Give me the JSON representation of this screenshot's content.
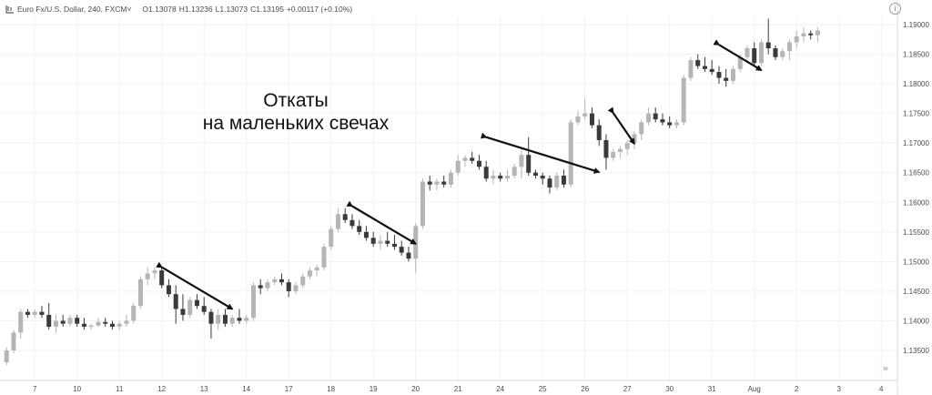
{
  "header": {
    "symbol": "Euro Fx/U.S. Dollar, 240, FXCM",
    "dropdown_glyph": "˅",
    "open": "O1.13078",
    "high": "H1.13236",
    "low": "L1.13073",
    "close": "C1.13195",
    "change": "+0.00117 (+0.10%)",
    "info_glyph": "i"
  },
  "annotation": {
    "line1": "Откаты",
    "line2": "на маленьких свечах"
  },
  "scroll_glyph": "»",
  "colors": {
    "bull_candle": "#b5b5b5",
    "bear_candle": "#3a3a3a",
    "grid": "#f0f2f5",
    "arrow": "#111111",
    "axis_text": "#4a4a4a"
  },
  "chart_data": {
    "type": "candlestick",
    "timeframe": "240",
    "y_ticks": [
      "1.13500",
      "1.14000",
      "1.14500",
      "1.15000",
      "1.15500",
      "1.16000",
      "1.16500",
      "1.17000",
      "1.17500",
      "1.18000",
      "1.18500",
      "1.19000"
    ],
    "ylim": [
      1.1325,
      1.192
    ],
    "x_ticks": [
      {
        "label": "7",
        "index": 4
      },
      {
        "label": "10",
        "index": 10
      },
      {
        "label": "11",
        "index": 16
      },
      {
        "label": "12",
        "index": 22
      },
      {
        "label": "13",
        "index": 28
      },
      {
        "label": "14",
        "index": 34
      },
      {
        "label": "17",
        "index": 40
      },
      {
        "label": "18",
        "index": 46
      },
      {
        "label": "19",
        "index": 52
      },
      {
        "label": "20",
        "index": 58
      },
      {
        "label": "21",
        "index": 64
      },
      {
        "label": "24",
        "index": 70
      },
      {
        "label": "25",
        "index": 76
      },
      {
        "label": "26",
        "index": 82
      },
      {
        "label": "27",
        "index": 88
      },
      {
        "label": "30",
        "index": 94
      },
      {
        "label": "31",
        "index": 100
      },
      {
        "label": "Aug",
        "index": 106
      },
      {
        "label": "2",
        "index": 112
      },
      {
        "label": "3",
        "index": 118
      },
      {
        "label": "4",
        "index": 124
      }
    ],
    "candles": [
      [
        1.133,
        1.1355,
        1.1325,
        1.135
      ],
      [
        1.135,
        1.1385,
        1.1345,
        1.138
      ],
      [
        1.138,
        1.142,
        1.137,
        1.1415
      ],
      [
        1.1415,
        1.142,
        1.1405,
        1.141
      ],
      [
        1.141,
        1.142,
        1.1405,
        1.1415
      ],
      [
        1.1415,
        1.1425,
        1.1405,
        1.141
      ],
      [
        1.141,
        1.143,
        1.1385,
        1.139
      ],
      [
        1.139,
        1.141,
        1.138,
        1.14
      ],
      [
        1.14,
        1.141,
        1.139,
        1.1395
      ],
      [
        1.1395,
        1.141,
        1.139,
        1.1405
      ],
      [
        1.1405,
        1.141,
        1.139,
        1.1395
      ],
      [
        1.1395,
        1.1405,
        1.1385,
        1.139
      ],
      [
        1.139,
        1.1395,
        1.1385,
        1.1392
      ],
      [
        1.1392,
        1.1405,
        1.139,
        1.1398
      ],
      [
        1.1398,
        1.1405,
        1.139,
        1.1395
      ],
      [
        1.1395,
        1.14,
        1.1385,
        1.139
      ],
      [
        1.139,
        1.14,
        1.1385,
        1.1395
      ],
      [
        1.1395,
        1.141,
        1.139,
        1.14
      ],
      [
        1.14,
        1.143,
        1.1395,
        1.1425
      ],
      [
        1.1425,
        1.1475,
        1.142,
        1.147
      ],
      [
        1.147,
        1.149,
        1.146,
        1.148
      ],
      [
        1.148,
        1.149,
        1.147,
        1.1485
      ],
      [
        1.1485,
        1.149,
        1.1455,
        1.146
      ],
      [
        1.146,
        1.147,
        1.144,
        1.1445
      ],
      [
        1.1445,
        1.146,
        1.1395,
        1.142
      ],
      [
        1.142,
        1.1445,
        1.14,
        1.141
      ],
      [
        1.141,
        1.144,
        1.1405,
        1.1435
      ],
      [
        1.1435,
        1.1445,
        1.142,
        1.1425
      ],
      [
        1.1425,
        1.144,
        1.141,
        1.1415
      ],
      [
        1.1415,
        1.142,
        1.137,
        1.1395
      ],
      [
        1.1395,
        1.142,
        1.1385,
        1.141
      ],
      [
        1.141,
        1.142,
        1.139,
        1.1395
      ],
      [
        1.1395,
        1.141,
        1.139,
        1.1405
      ],
      [
        1.1405,
        1.142,
        1.1395,
        1.14
      ],
      [
        1.14,
        1.141,
        1.1395,
        1.1405
      ],
      [
        1.1405,
        1.1465,
        1.14,
        1.146
      ],
      [
        1.146,
        1.147,
        1.1445,
        1.1455
      ],
      [
        1.1455,
        1.147,
        1.145,
        1.1465
      ],
      [
        1.1465,
        1.1475,
        1.146,
        1.147
      ],
      [
        1.147,
        1.148,
        1.146,
        1.1465
      ],
      [
        1.1465,
        1.147,
        1.144,
        1.145
      ],
      [
        1.145,
        1.1465,
        1.1445,
        1.146
      ],
      [
        1.146,
        1.148,
        1.1455,
        1.1475
      ],
      [
        1.1475,
        1.149,
        1.147,
        1.1485
      ],
      [
        1.1485,
        1.1495,
        1.1475,
        1.149
      ],
      [
        1.149,
        1.153,
        1.1485,
        1.1525
      ],
      [
        1.1525,
        1.156,
        1.152,
        1.1555
      ],
      [
        1.1555,
        1.159,
        1.155,
        1.158
      ],
      [
        1.158,
        1.159,
        1.1565,
        1.157
      ],
      [
        1.157,
        1.158,
        1.1555,
        1.156
      ],
      [
        1.156,
        1.157,
        1.1545,
        1.155
      ],
      [
        1.155,
        1.156,
        1.1535,
        1.154
      ],
      [
        1.154,
        1.155,
        1.1525,
        1.153
      ],
      [
        1.153,
        1.1545,
        1.152,
        1.1535
      ],
      [
        1.1535,
        1.155,
        1.1525,
        1.153
      ],
      [
        1.153,
        1.1545,
        1.152,
        1.1525
      ],
      [
        1.1525,
        1.1535,
        1.151,
        1.1515
      ],
      [
        1.1515,
        1.1525,
        1.15,
        1.1505
      ],
      [
        1.1505,
        1.1565,
        1.148,
        1.156
      ],
      [
        1.156,
        1.164,
        1.1555,
        1.1635
      ],
      [
        1.1635,
        1.1645,
        1.162,
        1.163
      ],
      [
        1.163,
        1.164,
        1.162,
        1.1635
      ],
      [
        1.1635,
        1.1645,
        1.1625,
        1.163
      ],
      [
        1.163,
        1.1655,
        1.1625,
        1.165
      ],
      [
        1.165,
        1.168,
        1.1645,
        1.167
      ],
      [
        1.167,
        1.168,
        1.166,
        1.1675
      ],
      [
        1.1675,
        1.1685,
        1.1665,
        1.167
      ],
      [
        1.167,
        1.168,
        1.1655,
        1.166
      ],
      [
        1.166,
        1.167,
        1.1635,
        1.164
      ],
      [
        1.164,
        1.1655,
        1.163,
        1.1645
      ],
      [
        1.1645,
        1.165,
        1.1635,
        1.164
      ],
      [
        1.164,
        1.1655,
        1.1635,
        1.1645
      ],
      [
        1.1645,
        1.1665,
        1.164,
        1.166
      ],
      [
        1.166,
        1.169,
        1.164,
        1.168
      ],
      [
        1.168,
        1.171,
        1.1645,
        1.165
      ],
      [
        1.165,
        1.1655,
        1.164,
        1.1645
      ],
      [
        1.1645,
        1.165,
        1.163,
        1.164
      ],
      [
        1.164,
        1.1645,
        1.1615,
        1.1625
      ],
      [
        1.1625,
        1.165,
        1.162,
        1.1645
      ],
      [
        1.1645,
        1.1655,
        1.1625,
        1.163
      ],
      [
        1.163,
        1.174,
        1.1625,
        1.1735
      ],
      [
        1.1735,
        1.1755,
        1.173,
        1.1745
      ],
      [
        1.1745,
        1.1775,
        1.174,
        1.175
      ],
      [
        1.175,
        1.176,
        1.1725,
        1.173
      ],
      [
        1.173,
        1.174,
        1.1695,
        1.1705
      ],
      [
        1.1705,
        1.1715,
        1.1655,
        1.1675
      ],
      [
        1.1675,
        1.169,
        1.167,
        1.1685
      ],
      [
        1.1685,
        1.1695,
        1.1675,
        1.169
      ],
      [
        1.169,
        1.1705,
        1.168,
        1.17
      ],
      [
        1.17,
        1.172,
        1.169,
        1.1715
      ],
      [
        1.1715,
        1.174,
        1.1705,
        1.1735
      ],
      [
        1.1735,
        1.176,
        1.173,
        1.175
      ],
      [
        1.175,
        1.176,
        1.1735,
        1.174
      ],
      [
        1.174,
        1.175,
        1.173,
        1.1735
      ],
      [
        1.1735,
        1.1745,
        1.1725,
        1.173
      ],
      [
        1.173,
        1.174,
        1.1725,
        1.1735
      ],
      [
        1.1735,
        1.1815,
        1.173,
        1.181
      ],
      [
        1.181,
        1.1845,
        1.1805,
        1.184
      ],
      [
        1.184,
        1.185,
        1.1825,
        1.183
      ],
      [
        1.183,
        1.1845,
        1.182,
        1.1825
      ],
      [
        1.1825,
        1.184,
        1.1815,
        1.182
      ],
      [
        1.182,
        1.183,
        1.18,
        1.181
      ],
      [
        1.181,
        1.1825,
        1.1795,
        1.1805
      ],
      [
        1.1805,
        1.183,
        1.18,
        1.1825
      ],
      [
        1.1825,
        1.185,
        1.182,
        1.1845
      ],
      [
        1.1845,
        1.1865,
        1.1835,
        1.186
      ],
      [
        1.186,
        1.187,
        1.183,
        1.1835
      ],
      [
        1.1835,
        1.1875,
        1.183,
        1.187
      ],
      [
        1.187,
        1.191,
        1.185,
        1.186
      ],
      [
        1.186,
        1.1865,
        1.184,
        1.1845
      ],
      [
        1.1845,
        1.186,
        1.184,
        1.1855
      ],
      [
        1.1855,
        1.1875,
        1.184,
        1.187
      ],
      [
        1.187,
        1.189,
        1.186,
        1.188
      ],
      [
        1.188,
        1.1895,
        1.187,
        1.1885
      ],
      [
        1.1885,
        1.189,
        1.1875,
        1.1882
      ],
      [
        1.1882,
        1.1895,
        1.187,
        1.189
      ]
    ],
    "pullback_arrows": [
      {
        "from": [
          22,
          1.14905
        ],
        "to": [
          32,
          1.142
        ]
      },
      {
        "from": [
          49,
          1.15935
        ],
        "to": [
          58,
          1.153
        ]
      },
      {
        "from": [
          68,
          1.171
        ],
        "to": [
          84,
          1.1651
        ]
      },
      {
        "from": [
          86,
          1.1751
        ],
        "to": [
          89,
          1.1699
        ]
      },
      {
        "from": [
          101,
          1.1866
        ],
        "to": [
          107,
          1.1823
        ]
      }
    ]
  }
}
